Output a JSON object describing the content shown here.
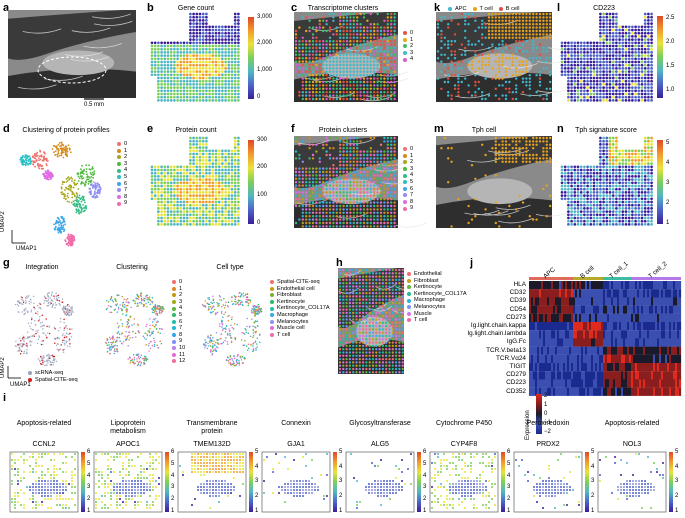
{
  "panels": {
    "a": {
      "label": "a",
      "scale_bar": "0.5 mm"
    },
    "b": {
      "label": "b",
      "title": "Gene count",
      "ticks": [
        "3,000",
        "2,000",
        "1,000",
        "0"
      ]
    },
    "c": {
      "label": "c",
      "title": "Transcriptome clusters",
      "legend": [
        "0",
        "1",
        "2",
        "3",
        "4"
      ]
    },
    "k": {
      "label": "k",
      "legend": [
        "APC",
        "T cell",
        "B cell"
      ]
    },
    "l": {
      "label": "l",
      "title": "CD223",
      "ticks": [
        "2.5",
        "2.0",
        "1.5",
        "1.0"
      ]
    },
    "d": {
      "label": "d",
      "title": "Clustering of protein profiles",
      "legend": [
        "0",
        "1",
        "2",
        "3",
        "4",
        "5",
        "6",
        "7",
        "8",
        "9"
      ],
      "xlabel": "UMAP1",
      "ylabel": "UMAP2"
    },
    "e": {
      "label": "e",
      "title": "Protein count",
      "ticks": [
        "300",
        "200",
        "100",
        "0"
      ]
    },
    "f": {
      "label": "f",
      "title": "Protein clusters",
      "legend": [
        "0",
        "1",
        "2",
        "3",
        "4",
        "5",
        "6",
        "7",
        "8",
        "9"
      ]
    },
    "m": {
      "label": "m",
      "title": "Tph cell"
    },
    "n": {
      "label": "n",
      "title": "Tph signature score",
      "ticks": [
        "5",
        "4",
        "3",
        "2",
        "1"
      ]
    },
    "g": {
      "label": "g",
      "subtitles": [
        "Integration",
        "Clustering",
        "Cell type"
      ],
      "int_legend": [
        "scRNA-seq",
        "Spatial-CITE-seq"
      ],
      "clusters": [
        "0",
        "1",
        "2",
        "3",
        "4",
        "5",
        "6",
        "7",
        "8",
        "9",
        "10",
        "11",
        "12"
      ],
      "celltypes": [
        "Spatial-CITE-seq",
        "Endothelial cell",
        "Fibroblast",
        "Kertinocyte",
        "Kertinocyte_COL17A",
        "Macrophage",
        "Melanocytes",
        "Muscle cell",
        "T cell"
      ],
      "xlabel": "UMAP1",
      "ylabel": "UMAP2"
    },
    "h": {
      "label": "h",
      "legend": [
        "Endothelial",
        "Fibroblast",
        "Kertinocyte",
        "Kertinocyte_COL17A",
        "Macrophage",
        "Melanocytes",
        "Muscle",
        "T cell"
      ]
    },
    "j": {
      "label": "j",
      "columns": [
        "APC",
        "B cell",
        "T cell_1",
        "T cell_2"
      ],
      "rows": [
        "HLA",
        "CD32",
        "CD39",
        "CD54",
        "CD273",
        "Ig.light.chain.kappa",
        "Ig.light.chain.lambda",
        "IgG.Fc",
        "TCR.V.beta13",
        "TCR.Vα24",
        "TIGIT",
        "CD279",
        "CD223",
        "CD352"
      ],
      "scale_title": "Expression",
      "scale_ticks": [
        "2",
        "1",
        "0",
        "−1",
        "−2"
      ]
    },
    "i": {
      "label": "i",
      "categories": [
        "Apoptosis-related",
        "Lipoprotein metabolism",
        "Transmembrane protein",
        "Connexin",
        "Glycosyltransferase",
        "Cytochrome P450",
        "Peroxiredoxin",
        "Apoptosis-related"
      ],
      "genes": [
        "CCNL2",
        "APOC1",
        "TMEM132D",
        "GJA1",
        "ALG5",
        "CYP4F8",
        "PRDX2",
        "NOL3"
      ],
      "ticks": [
        [
          "6",
          "5",
          "4",
          "3",
          "2",
          "1"
        ],
        [
          "6",
          "5",
          "4",
          "3",
          "2",
          "1"
        ],
        [
          "5",
          "4",
          "3",
          "2",
          "1"
        ],
        [
          "5",
          "4",
          "3",
          "2",
          "1"
        ],
        [
          "6",
          "5",
          "4",
          "3",
          "2",
          "1"
        ],
        [
          "6",
          "5",
          "4",
          "3",
          "2",
          "1"
        ],
        [
          "5",
          "4",
          "3",
          "2",
          "1"
        ],
        [
          "5",
          "4",
          "3",
          "2",
          "1"
        ]
      ]
    }
  },
  "colors": {
    "viridis": [
      "#3b1f9a",
      "#4d63c8",
      "#4fb7c4",
      "#7ccf5a",
      "#e9e33a",
      "#f39a2a",
      "#e04826"
    ],
    "clusters5": [
      "#e6553f",
      "#e6a91a",
      "#3cbf6a",
      "#40b8c8",
      "#d65fd0"
    ],
    "clusters10": [
      "#f0716c",
      "#d58a1e",
      "#a8a61b",
      "#4fb83b",
      "#30bd86",
      "#29bfc4",
      "#39a6e8",
      "#8f8ef2",
      "#df6be4",
      "#f06aa8"
    ],
    "k_types": [
      "#3eb8d0",
      "#e8a21a",
      "#e0503f"
    ],
    "clusters13": [
      "#f0716c",
      "#e2852a",
      "#c6980d",
      "#9fab1a",
      "#58b73a",
      "#2bbd6b",
      "#21bfa4",
      "#22b9d3",
      "#35a4ee",
      "#7f8ef7",
      "#b97ef3",
      "#e46ad6",
      "#f26ca3"
    ],
    "celltypes": [
      "#f0716c",
      "#cb9a16",
      "#7eb02a",
      "#28b964",
      "#1fbfae",
      "#32a9e8",
      "#8f8ef2",
      "#df6be4",
      "#f06aa8"
    ],
    "h_types": [
      "#f0716c",
      "#c9a017",
      "#69b53a",
      "#22be91",
      "#29b4d8",
      "#7a93f4",
      "#d775e9",
      "#f06aa8"
    ],
    "heat": [
      "#1b2a8f",
      "#3a4fb0",
      "#1a1a2a",
      "#8a1d1d",
      "#e02a1e"
    ]
  }
}
